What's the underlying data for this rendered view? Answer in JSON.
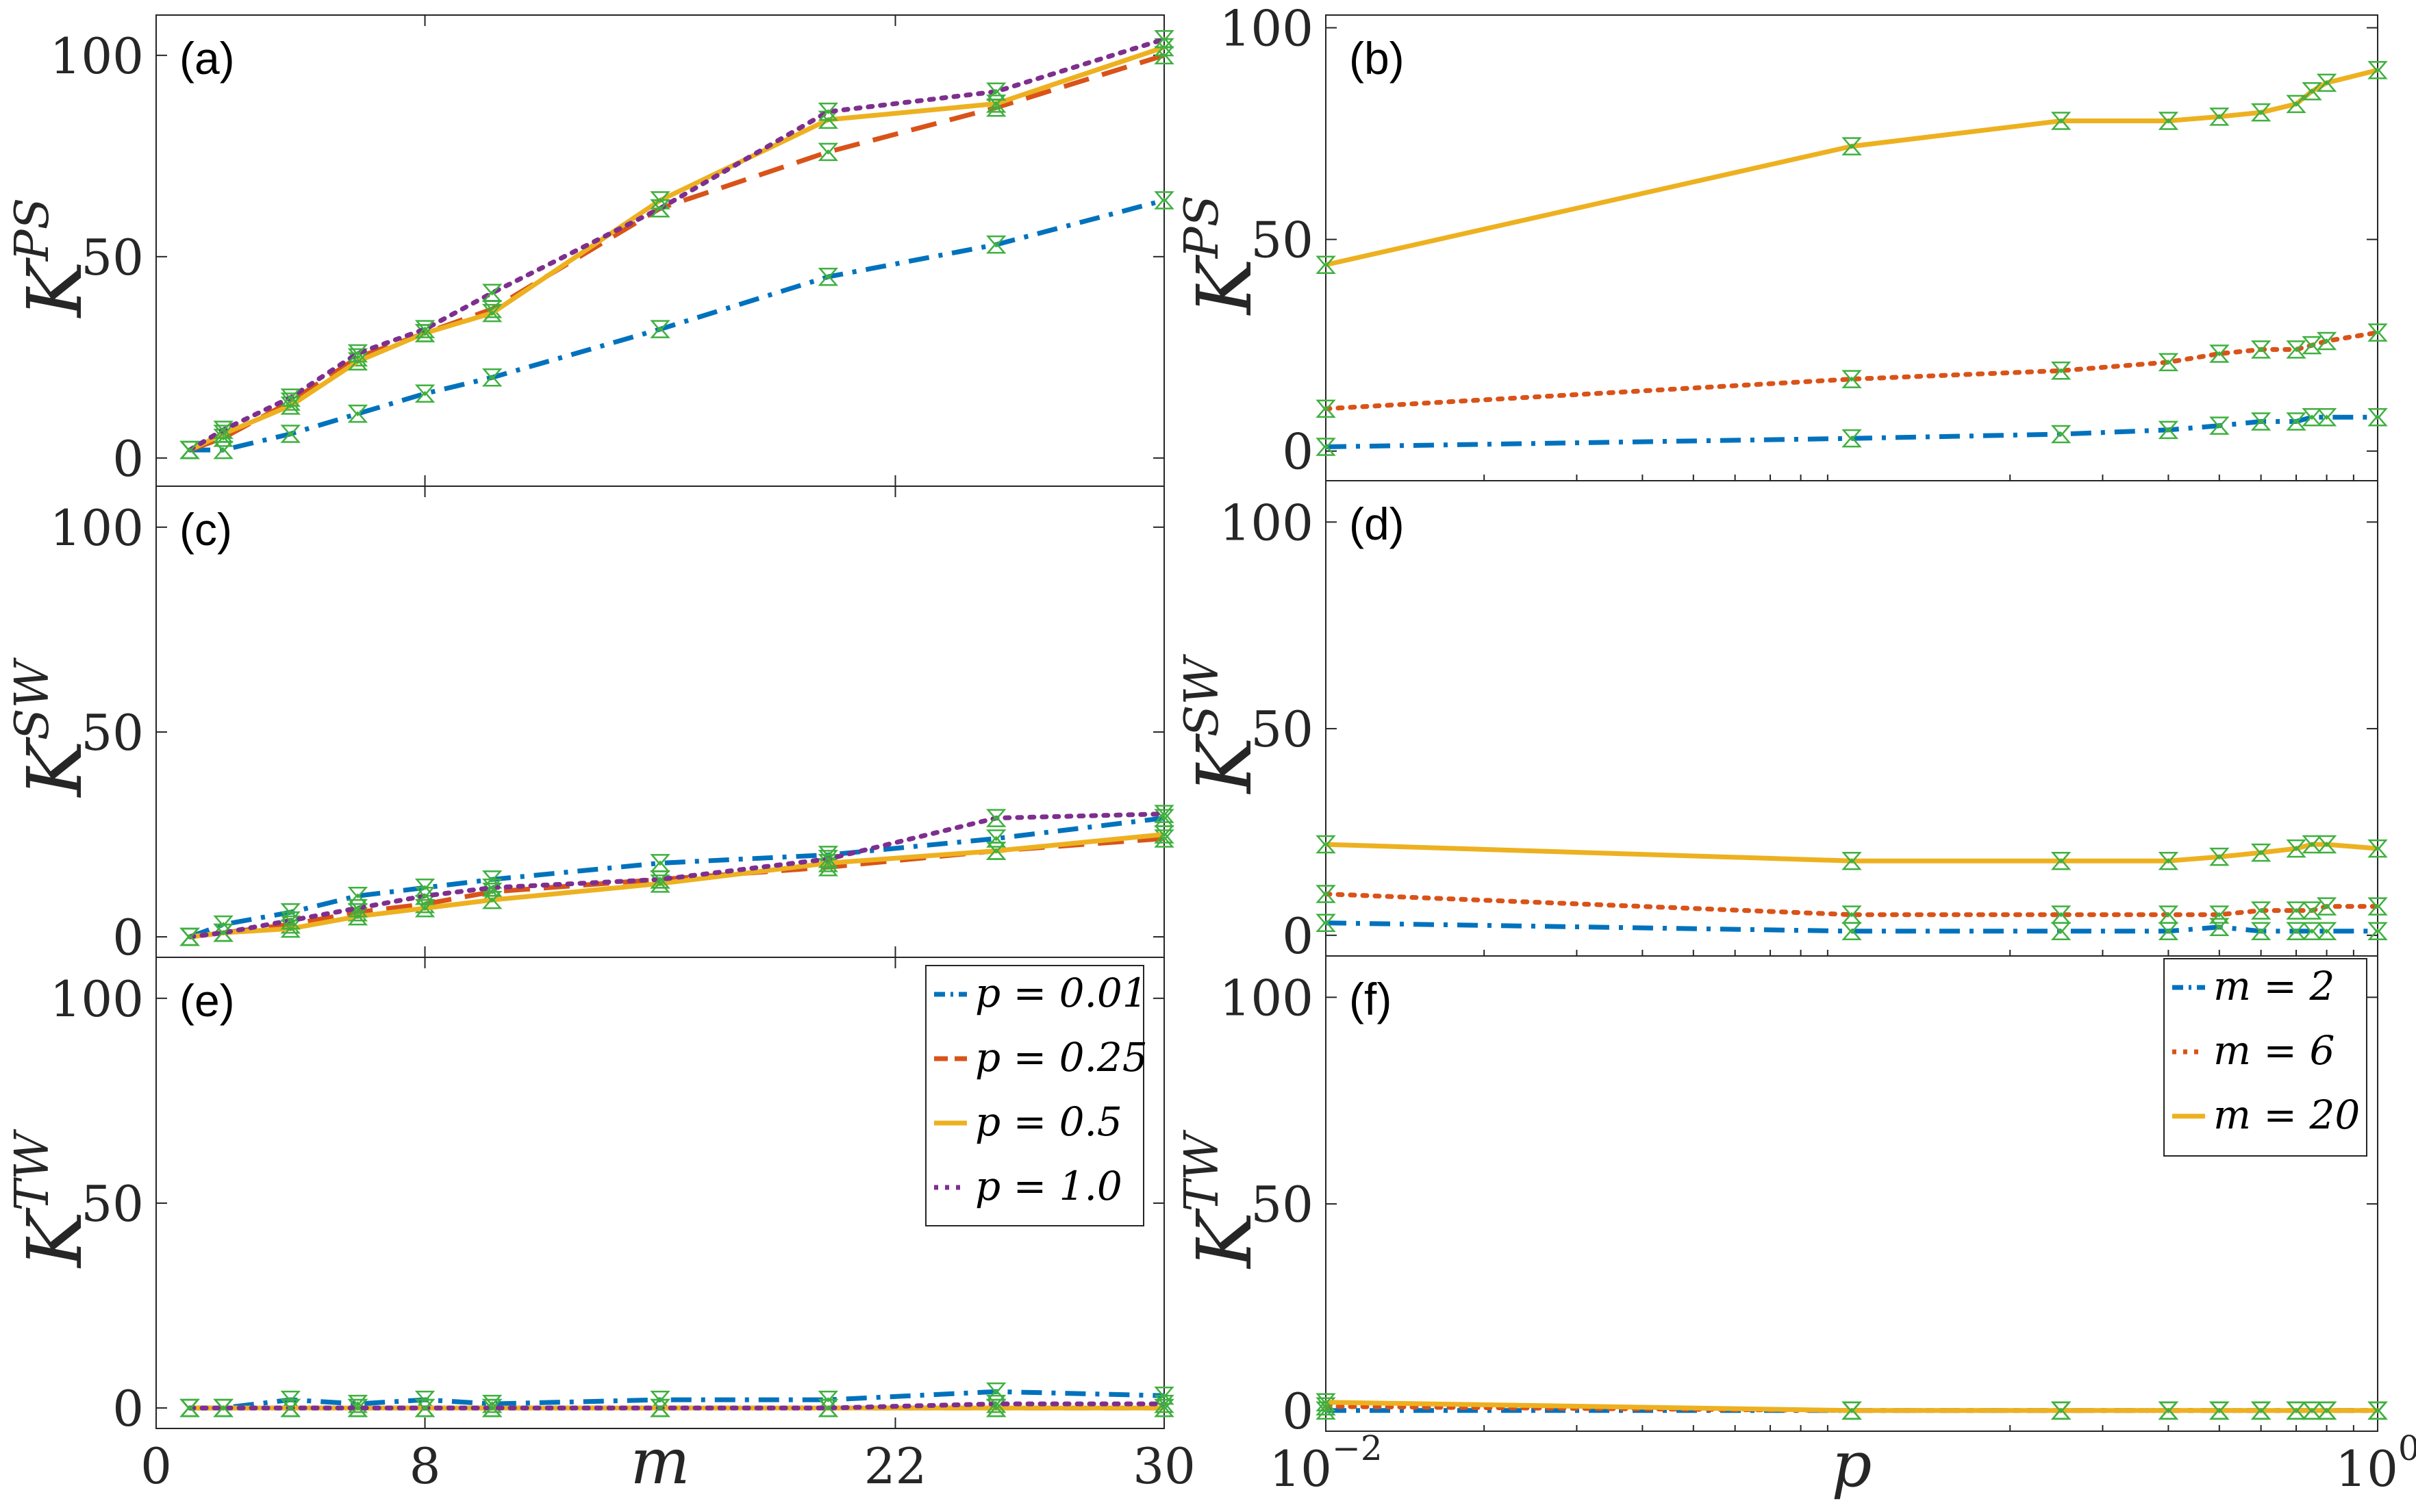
{
  "chart_data": [
    {
      "panel": "a",
      "type": "line",
      "panel_label": "(a)",
      "ylabel": "K",
      "ylabel_sup": "PS",
      "xlabel": "",
      "xscale": "linear",
      "xlim": [
        0,
        30
      ],
      "ylim": [
        -7,
        110
      ],
      "xticks": [
        0,
        8,
        22,
        30
      ],
      "xtick_labels": [],
      "yticks": [
        0,
        50,
        100
      ],
      "ytick_labels": [
        "0",
        "50",
        "100"
      ],
      "series": [
        {
          "name": "p = 0.01",
          "color": "#0072BD",
          "style": "dashdot",
          "x": [
            1,
            2,
            4,
            6,
            8,
            10,
            15,
            20,
            25,
            30
          ],
          "y": [
            2,
            2,
            6,
            11,
            16,
            20,
            32,
            45,
            53,
            64
          ]
        },
        {
          "name": "p = 0.25",
          "color": "#D95319",
          "style": "dashed",
          "x": [
            1,
            2,
            4,
            6,
            8,
            10,
            15,
            20,
            25,
            30
          ],
          "y": [
            2,
            5,
            14,
            25,
            31,
            37,
            62,
            76,
            87,
            100
          ]
        },
        {
          "name": "p = 0.5",
          "color": "#EDB120",
          "style": "solid",
          "x": [
            1,
            2,
            4,
            6,
            8,
            10,
            15,
            20,
            25,
            30
          ],
          "y": [
            2,
            6,
            13,
            24,
            31,
            36,
            64,
            84,
            88,
            102
          ]
        },
        {
          "name": "p = 1.0",
          "color": "#7E2F8E",
          "style": "dotted",
          "x": [
            1,
            2,
            4,
            6,
            8,
            10,
            15,
            20,
            25,
            30
          ],
          "y": [
            2,
            7,
            15,
            26,
            32,
            41,
            62,
            86,
            91,
            104
          ]
        }
      ]
    },
    {
      "panel": "b",
      "type": "line",
      "panel_label": "(b)",
      "ylabel": "K",
      "ylabel_sup": "PS",
      "xlabel": "",
      "xscale": "log",
      "xlim": [
        0.01,
        1
      ],
      "ylim": [
        -7,
        103
      ],
      "xticks": [
        0.01,
        1
      ],
      "xtick_labels": [],
      "yticks": [
        0,
        50,
        100
      ],
      "ytick_labels": [
        "0",
        "50",
        "100"
      ],
      "series": [
        {
          "name": "m = 2",
          "color": "#0072BD",
          "style": "dashdot",
          "x": [
            0.01,
            0.1,
            0.25,
            0.4,
            0.5,
            0.6,
            0.7,
            0.75,
            0.8,
            1.0
          ],
          "y": [
            1,
            3,
            4,
            5,
            6,
            7,
            7,
            8,
            8,
            8
          ]
        },
        {
          "name": "m = 6",
          "color": "#D95319",
          "style": "dotted",
          "x": [
            0.01,
            0.1,
            0.25,
            0.4,
            0.5,
            0.6,
            0.7,
            0.75,
            0.8,
            1.0
          ],
          "y": [
            10,
            17,
            19,
            21,
            23,
            24,
            24,
            25,
            26,
            28
          ]
        },
        {
          "name": "m = 20",
          "color": "#EDB120",
          "style": "solid",
          "x": [
            0.01,
            0.1,
            0.25,
            0.4,
            0.5,
            0.6,
            0.7,
            0.75,
            0.8,
            1.0
          ],
          "y": [
            44,
            72,
            78,
            78,
            79,
            80,
            82,
            85,
            87,
            90
          ]
        }
      ]
    },
    {
      "panel": "c",
      "type": "line",
      "panel_label": "(c)",
      "ylabel": "K",
      "ylabel_sup": "SW",
      "xlabel": "",
      "xscale": "linear",
      "xlim": [
        0,
        30
      ],
      "ylim": [
        -5,
        110
      ],
      "xticks": [
        0,
        8,
        22,
        30
      ],
      "xtick_labels": [],
      "yticks": [
        0,
        50,
        100
      ],
      "ytick_labels": [
        "0",
        "50",
        "100"
      ],
      "series": [
        {
          "name": "p = 0.01",
          "color": "#0072BD",
          "style": "dashdot",
          "x": [
            1,
            2,
            4,
            6,
            8,
            10,
            15,
            20,
            25,
            30
          ],
          "y": [
            0,
            3,
            6,
            10,
            12,
            14,
            18,
            20,
            24,
            29
          ]
        },
        {
          "name": "p = 0.25",
          "color": "#D95319",
          "style": "dashed",
          "x": [
            1,
            2,
            4,
            6,
            8,
            10,
            15,
            20,
            25,
            30
          ],
          "y": [
            0,
            1,
            3,
            6,
            8,
            11,
            14,
            17,
            21,
            24
          ]
        },
        {
          "name": "p = 0.5",
          "color": "#EDB120",
          "style": "solid",
          "x": [
            1,
            2,
            4,
            6,
            8,
            10,
            15,
            20,
            25,
            30
          ],
          "y": [
            0,
            1,
            2,
            5,
            7,
            9,
            13,
            18,
            21,
            25
          ]
        },
        {
          "name": "p = 1.0",
          "color": "#7E2F8E",
          "style": "dotted",
          "x": [
            1,
            2,
            4,
            6,
            8,
            10,
            15,
            20,
            25,
            30
          ],
          "y": [
            0,
            1,
            4,
            7,
            10,
            12,
            14,
            19,
            29,
            30
          ]
        }
      ]
    },
    {
      "panel": "d",
      "type": "line",
      "panel_label": "(d)",
      "ylabel": "K",
      "ylabel_sup": "SW",
      "xlabel": "",
      "xscale": "log",
      "xlim": [
        0.01,
        1
      ],
      "ylim": [
        -5,
        110
      ],
      "xticks": [
        0.01,
        1
      ],
      "xtick_labels": [],
      "yticks": [
        0,
        50,
        100
      ],
      "ytick_labels": [
        "0",
        "50",
        "100"
      ],
      "series": [
        {
          "name": "m = 2",
          "color": "#0072BD",
          "style": "dashdot",
          "x": [
            0.01,
            0.1,
            0.25,
            0.4,
            0.5,
            0.6,
            0.7,
            0.75,
            0.8,
            1.0
          ],
          "y": [
            3,
            1,
            1,
            1,
            2,
            1,
            1,
            1,
            1,
            1
          ]
        },
        {
          "name": "m = 6",
          "color": "#D95319",
          "style": "dotted",
          "x": [
            0.01,
            0.1,
            0.25,
            0.4,
            0.5,
            0.6,
            0.7,
            0.75,
            0.8,
            1.0
          ],
          "y": [
            10,
            5,
            5,
            5,
            5,
            6,
            6,
            6,
            7,
            7
          ]
        },
        {
          "name": "m = 20",
          "color": "#EDB120",
          "style": "solid",
          "x": [
            0.01,
            0.1,
            0.25,
            0.4,
            0.5,
            0.6,
            0.7,
            0.75,
            0.8,
            1.0
          ],
          "y": [
            22,
            18,
            18,
            18,
            19,
            20,
            21,
            22,
            22,
            21
          ]
        }
      ]
    },
    {
      "panel": "e",
      "type": "line",
      "panel_label": "(e)",
      "ylabel": "K",
      "ylabel_sup": "TW",
      "xlabel": "m",
      "xscale": "linear",
      "xlim": [
        0,
        30
      ],
      "ylim": [
        -5,
        110
      ],
      "xticks": [
        0,
        8,
        22,
        30
      ],
      "xtick_labels": [
        "0",
        "8",
        "22",
        "30"
      ],
      "yticks": [
        0,
        50,
        100
      ],
      "ytick_labels": [
        "0",
        "50",
        "100"
      ],
      "legend": "top-right",
      "series": [
        {
          "name": "p = 0.01",
          "color": "#0072BD",
          "style": "dashdot",
          "x": [
            1,
            2,
            4,
            6,
            8,
            10,
            15,
            20,
            25,
            30
          ],
          "y": [
            0,
            0,
            2,
            1,
            2,
            1,
            2,
            2,
            4,
            3
          ]
        },
        {
          "name": "p = 0.25",
          "color": "#D95319",
          "style": "dashed",
          "x": [
            1,
            2,
            4,
            6,
            8,
            10,
            15,
            20,
            25,
            30
          ],
          "y": [
            0,
            0,
            0,
            0,
            0,
            0,
            0,
            0,
            0,
            0
          ]
        },
        {
          "name": "p = 0.5",
          "color": "#EDB120",
          "style": "solid",
          "x": [
            1,
            2,
            4,
            6,
            8,
            10,
            15,
            20,
            25,
            30
          ],
          "y": [
            0,
            0,
            0,
            0,
            0,
            0,
            0,
            0,
            0,
            0
          ]
        },
        {
          "name": "p = 1.0",
          "color": "#7E2F8E",
          "style": "dotted",
          "x": [
            1,
            2,
            4,
            6,
            8,
            10,
            15,
            20,
            25,
            30
          ],
          "y": [
            0,
            0,
            0,
            0,
            0,
            0,
            0,
            0,
            1,
            1
          ]
        }
      ]
    },
    {
      "panel": "f",
      "type": "line",
      "panel_label": "(f)",
      "ylabel": "K",
      "ylabel_sup": "TW",
      "xlabel": "p",
      "xscale": "log",
      "xlim": [
        0.01,
        1
      ],
      "ylim": [
        -5,
        110
      ],
      "xticks": [
        0.01,
        1
      ],
      "xtick_labels": [
        "10",
        "10"
      ],
      "xtick_exponents": [
        "−2",
        "0"
      ],
      "yticks": [
        0,
        50,
        100
      ],
      "ytick_labels": [
        "0",
        "50",
        "100"
      ],
      "legend": "top-right",
      "series": [
        {
          "name": "m = 2",
          "color": "#0072BD",
          "style": "dashdot",
          "x": [
            0.01,
            0.1,
            0.25,
            0.4,
            0.5,
            0.6,
            0.7,
            0.75,
            0.8,
            1.0
          ],
          "y": [
            0,
            0,
            0,
            0,
            0,
            0,
            0,
            0,
            0,
            0
          ]
        },
        {
          "name": "m = 6",
          "color": "#D95319",
          "style": "dotted",
          "x": [
            0.01,
            0.1,
            0.25,
            0.4,
            0.5,
            0.6,
            0.7,
            0.75,
            0.8,
            1.0
          ],
          "y": [
            1,
            0,
            0,
            0,
            0,
            0,
            0,
            0,
            0,
            0
          ]
        },
        {
          "name": "m = 20",
          "color": "#EDB120",
          "style": "solid",
          "x": [
            0.01,
            0.1,
            0.25,
            0.4,
            0.5,
            0.6,
            0.7,
            0.75,
            0.8,
            1.0
          ],
          "y": [
            2,
            0,
            0,
            0,
            0,
            0,
            0,
            0,
            0,
            0
          ]
        }
      ]
    }
  ],
  "legend_left": [
    "p = 0.01",
    "p = 0.25",
    "p = 0.5",
    "p = 1.0"
  ],
  "legend_right": [
    "m = 2",
    "m = 6",
    "m = 20"
  ]
}
